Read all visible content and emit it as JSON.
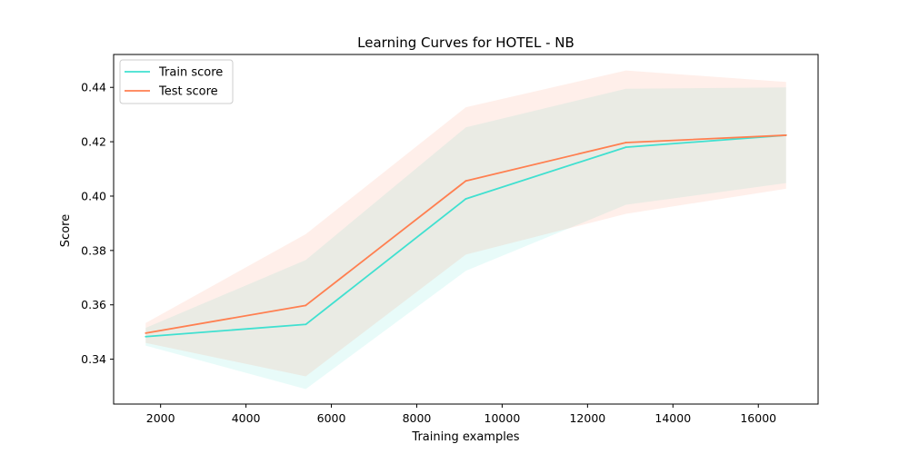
{
  "chart_data": {
    "type": "line",
    "title": "Learning Curves for HOTEL - NB",
    "xlabel": "Training examples",
    "ylabel": "Score",
    "xlim": [
      900,
      17400
    ],
    "ylim": [
      0.3235,
      0.4521
    ],
    "xticks": [
      2000,
      4000,
      6000,
      8000,
      10000,
      12000,
      14000,
      16000
    ],
    "xtick_labels": [
      "2000",
      "4000",
      "6000",
      "8000",
      "10000",
      "12000",
      "14000",
      "16000"
    ],
    "yticks": [
      0.34,
      0.36,
      0.38,
      0.4,
      0.42,
      0.44
    ],
    "ytick_labels": [
      "0.34",
      "0.36",
      "0.38",
      "0.40",
      "0.42",
      "0.44"
    ],
    "grid": false,
    "legend_position": "top-left",
    "x": [
      1650,
      5400,
      9150,
      12900,
      16650
    ],
    "series": [
      {
        "name": "Train score",
        "color": "#40e0d0",
        "values": [
          0.3483,
          0.3528,
          0.399,
          0.418,
          0.4224
        ],
        "band_upper": [
          0.3515,
          0.3765,
          0.4253,
          0.4395,
          0.44
        ],
        "band_lower": [
          0.345,
          0.329,
          0.3725,
          0.3968,
          0.4048
        ]
      },
      {
        "name": "Test score",
        "color": "#ff7f50",
        "values": [
          0.3496,
          0.3598,
          0.4056,
          0.4197,
          0.4224
        ],
        "band_upper": [
          0.3533,
          0.386,
          0.4327,
          0.4462,
          0.442
        ],
        "band_lower": [
          0.346,
          0.3337,
          0.3785,
          0.3935,
          0.4027
        ]
      }
    ]
  }
}
